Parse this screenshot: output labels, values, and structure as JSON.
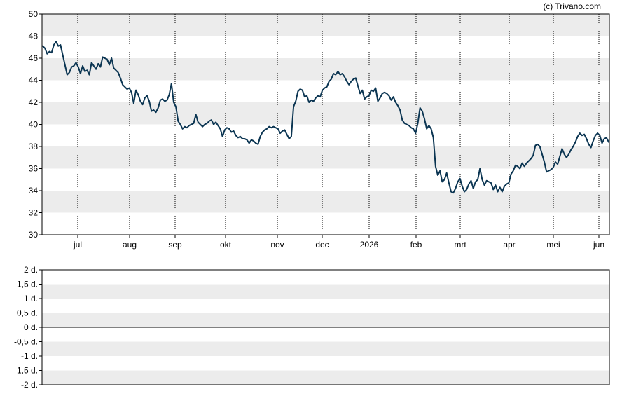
{
  "copyright": "(c) Trivano.com",
  "chart_data": [
    {
      "type": "line",
      "title": "",
      "xlabel": "",
      "ylabel": "",
      "ylim": [
        30,
        50
      ],
      "y_ticks": [
        "30",
        "32",
        "34",
        "36",
        "38",
        "40",
        "42",
        "44",
        "46",
        "48",
        "50"
      ],
      "x_ticks": [
        "jul",
        "aug",
        "sep",
        "okt",
        "nov",
        "dec",
        "2026",
        "feb",
        "mrt",
        "apr",
        "mei",
        "jun"
      ],
      "grid": "alternating horizontal bands, dotted vertical gridlines",
      "line_color": "#0b3552",
      "series": [
        {
          "values": [
            47.1,
            46.9,
            46.4,
            46.6,
            46.5,
            47.2,
            47.5,
            47.1,
            47.2,
            46.3,
            45.4,
            44.5,
            44.7,
            45.2,
            45.3,
            45.6,
            45.2,
            44.6,
            45.3,
            44.8,
            44.9,
            44.5,
            45.6,
            45.3,
            45.0,
            45.5,
            45.2,
            46.1,
            46.0,
            45.9,
            45.4,
            46.0,
            45.1,
            44.9,
            44.7,
            44.2,
            43.6,
            43.4,
            43.2,
            43.3,
            42.9,
            41.9,
            43.1,
            42.7,
            42.1,
            41.8,
            42.4,
            42.6,
            42.1,
            41.2,
            41.3,
            41.1,
            41.5,
            42.2,
            42.3,
            42.1,
            42.2,
            42.7,
            43.7,
            42.0,
            41.6,
            40.3,
            40.0,
            39.6,
            39.8,
            39.7,
            39.9,
            40.0,
            40.1,
            40.9,
            40.2,
            40.0,
            39.8,
            40.0,
            40.1,
            40.3,
            40.4,
            40.0,
            40.2,
            39.9,
            39.6,
            38.9,
            39.5,
            39.7,
            39.6,
            39.3,
            39.4,
            39.0,
            38.8,
            38.9,
            38.7,
            38.7,
            38.6,
            38.3,
            38.6,
            38.5,
            38.3,
            38.2,
            38.9,
            39.3,
            39.5,
            39.6,
            39.8,
            39.7,
            39.8,
            39.7,
            39.6,
            39.2,
            39.4,
            39.5,
            39.1,
            38.7,
            38.9,
            41.6,
            42.1,
            43.0,
            43.2,
            43.1,
            42.5,
            42.6,
            42.0,
            42.2,
            42.1,
            42.4,
            42.6,
            42.5,
            43.1,
            43.3,
            43.4,
            43.9,
            44.1,
            44.6,
            44.5,
            44.8,
            44.5,
            44.6,
            44.3,
            43.9,
            43.6,
            43.9,
            44.1,
            44.2,
            43.5,
            42.8,
            43.1,
            42.3,
            42.5,
            42.6,
            43.1,
            43.0,
            43.3,
            42.1,
            42.4,
            42.8,
            42.9,
            42.8,
            42.6,
            42.2,
            42.5,
            42.0,
            41.7,
            41.3,
            40.4,
            40.1,
            40.0,
            39.9,
            39.7,
            39.6,
            39.2,
            40.1,
            41.5,
            41.2,
            40.5,
            39.6,
            39.9,
            39.6,
            38.8,
            36.2,
            35.4,
            35.8,
            34.8,
            35.0,
            35.6,
            34.7,
            33.9,
            33.8,
            34.2,
            34.8,
            35.1,
            34.4,
            33.9,
            34.1,
            34.6,
            34.9,
            34.2,
            34.8,
            35.0,
            36.0,
            35.0,
            34.5,
            34.9,
            34.8,
            34.7,
            34.1,
            34.5,
            33.9,
            34.3,
            33.9,
            34.4,
            34.6,
            34.7,
            35.5,
            35.8,
            36.3,
            36.2,
            36.0,
            36.5,
            36.2,
            36.5,
            36.7,
            36.9,
            37.2,
            38.1,
            38.2,
            38.0,
            37.3,
            36.6,
            35.7,
            35.8,
            35.9,
            36.1,
            36.6,
            36.4,
            37.1,
            37.8,
            37.3,
            37.0,
            37.3,
            37.7,
            38.0,
            38.4,
            38.9,
            39.2,
            39.0,
            39.1,
            38.7,
            38.2,
            37.9,
            38.5,
            39.0,
            39.2,
            39.0,
            38.3,
            38.7,
            38.8,
            38.4
          ]
        }
      ]
    },
    {
      "type": "line",
      "title": "",
      "xlabel": "",
      "ylabel": "",
      "ylim": [
        -2,
        2
      ],
      "y_ticks": [
        "2 d.",
        "1,5 d.",
        "1 d.",
        "0,5 d.",
        "0 d.",
        "-0,5 d.",
        "-1 d.",
        "-1,5 d.",
        "-2 d."
      ],
      "grid": "alternating horizontal bands",
      "series": [
        {
          "values": []
        }
      ]
    }
  ]
}
